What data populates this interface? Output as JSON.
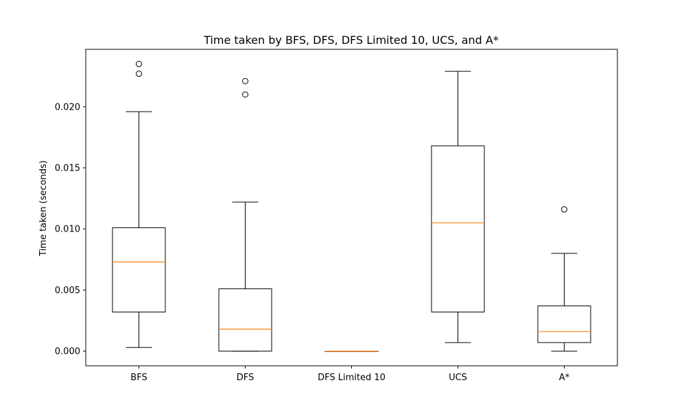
{
  "chart_data": {
    "type": "box",
    "title": "Time taken by BFS, DFS, DFS Limited 10, UCS, and A*",
    "xlabel": "",
    "ylabel": "Time taken (seconds)",
    "ylim": [
      -0.0012,
      0.0247
    ],
    "yticks": [
      "0.000",
      "0.005",
      "0.010",
      "0.015",
      "0.020"
    ],
    "ytick_values": [
      0,
      0.005,
      0.01,
      0.015,
      0.02
    ],
    "grid": false,
    "legend": "none",
    "box_color": "#000000",
    "median_color": "#ff7f0e",
    "categories": [
      "BFS",
      "DFS",
      "DFS Limited 10",
      "UCS",
      "A*"
    ],
    "boxes": [
      {
        "label": "BFS",
        "whisker_low": 0.0003,
        "q1": 0.0032,
        "median": 0.0073,
        "q3": 0.0101,
        "whisker_high": 0.0196,
        "outliers": [
          0.0227,
          0.0235
        ]
      },
      {
        "label": "DFS",
        "whisker_low": 0.0,
        "q1": 0.0,
        "median": 0.0018,
        "q3": 0.0051,
        "whisker_high": 0.0122,
        "outliers": [
          0.021,
          0.0221
        ]
      },
      {
        "label": "DFS Limited 10",
        "whisker_low": 0.0,
        "q1": 0.0,
        "median": 0.0,
        "q3": 0.0,
        "whisker_high": 0.0,
        "outliers": []
      },
      {
        "label": "UCS",
        "whisker_low": 0.0007,
        "q1": 0.0032,
        "median": 0.0105,
        "q3": 0.0168,
        "whisker_high": 0.0229,
        "outliers": []
      },
      {
        "label": "A*",
        "whisker_low": 0.0,
        "q1": 0.0007,
        "median": 0.0016,
        "q3": 0.0037,
        "whisker_high": 0.008,
        "outliers": [
          0.0116
        ]
      }
    ]
  }
}
